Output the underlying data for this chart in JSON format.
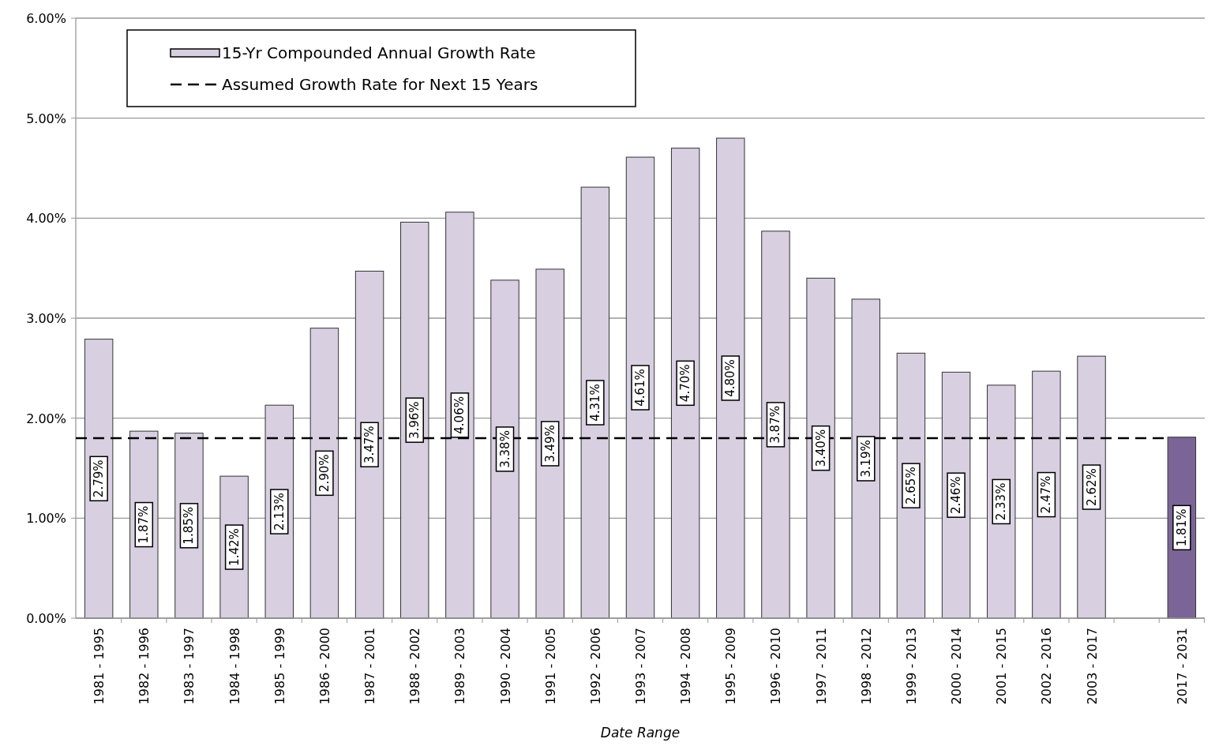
{
  "chart_data": {
    "type": "bar",
    "xlabel": "Date Range",
    "categories": [
      "1981 - 1995",
      "1982 - 1996",
      "1983 - 1997",
      "1984 - 1998",
      "1985 - 1999",
      "1986 - 2000",
      "1987 - 2001",
      "1988 - 2002",
      "1989 - 2003",
      "1990 - 2004",
      "1991 - 2005",
      "1992 - 2006",
      "1993 - 2007",
      "1994 - 2008",
      "1995 - 2009",
      "1996 - 2010",
      "1997 - 2011",
      "1998 - 2012",
      "1999 - 2013",
      "2000 - 2014",
      "2001 - 2015",
      "2002 - 2016",
      "2003 - 2017",
      null,
      "2017 - 2031"
    ],
    "series": [
      {
        "name": "15-Yr Compounded Annual Growth Rate",
        "values": [
          2.79,
          1.87,
          1.85,
          1.42,
          2.13,
          2.9,
          3.47,
          3.96,
          4.06,
          3.38,
          3.49,
          4.31,
          4.61,
          4.7,
          4.8,
          3.87,
          3.4,
          3.19,
          2.65,
          2.46,
          2.33,
          2.47,
          2.62,
          null,
          1.81
        ],
        "colors": [
          "#d8cfe1",
          "#d8cfe1",
          "#d8cfe1",
          "#d8cfe1",
          "#d8cfe1",
          "#d8cfe1",
          "#d8cfe1",
          "#d8cfe1",
          "#d8cfe1",
          "#d8cfe1",
          "#d8cfe1",
          "#d8cfe1",
          "#d8cfe1",
          "#d8cfe1",
          "#d8cfe1",
          "#d8cfe1",
          "#d8cfe1",
          "#d8cfe1",
          "#d8cfe1",
          "#d8cfe1",
          "#d8cfe1",
          "#d8cfe1",
          "#d8cfe1",
          null,
          "#7b6596"
        ],
        "value_labels": [
          "2.79%",
          "1.87%",
          "1.85%",
          "1.42%",
          "2.13%",
          "2.90%",
          "3.47%",
          "3.96%",
          "4.06%",
          "3.38%",
          "3.49%",
          "4.31%",
          "4.61%",
          "4.70%",
          "4.80%",
          "3.87%",
          "3.40%",
          "3.19%",
          "2.65%",
          "2.46%",
          "2.33%",
          "2.47%",
          "2.62%",
          null,
          "1.81%"
        ]
      }
    ],
    "ylim": [
      0,
      6
    ],
    "yticks": [
      {
        "value": 0,
        "label": "0.00%"
      },
      {
        "value": 1,
        "label": "1.00%"
      },
      {
        "value": 2,
        "label": "2.00%"
      },
      {
        "value": 3,
        "label": "3.00%"
      },
      {
        "value": 4,
        "label": "4.00%"
      },
      {
        "value": 5,
        "label": "5.00%"
      },
      {
        "value": 6,
        "label": "6.00%"
      }
    ],
    "grid": "y",
    "ref_lines": [
      {
        "axis": "y",
        "value": 1.8,
        "label": "Assumed Growth Rate for Next 15 Years",
        "color": "#000000",
        "line_style": "dashed"
      }
    ],
    "legend": "top left"
  }
}
